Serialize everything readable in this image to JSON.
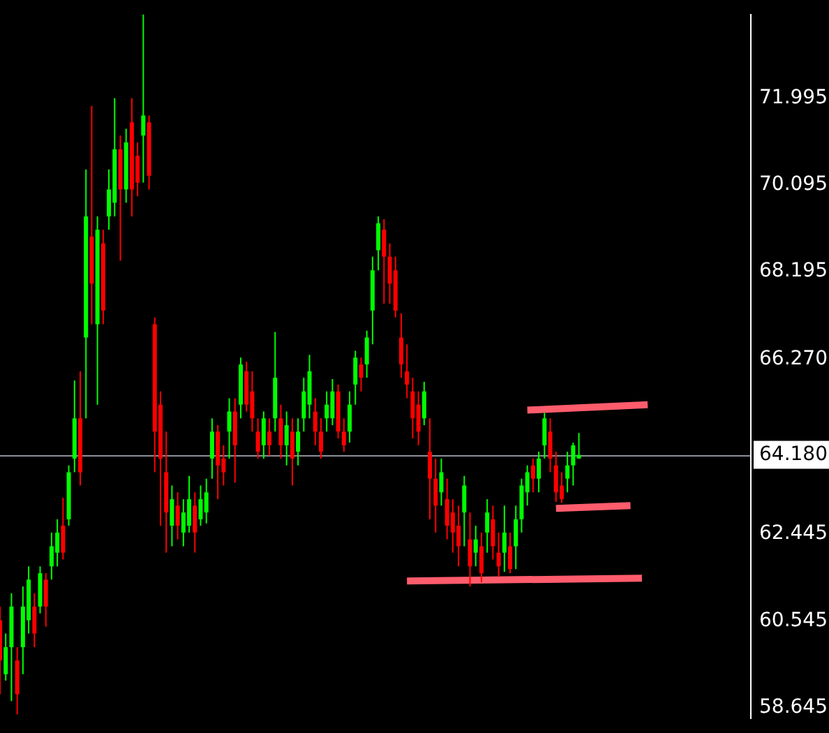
{
  "chart_data": {
    "type": "candlestick",
    "categories": [
      null,
      null,
      null,
      null,
      null,
      null,
      null,
      null,
      null,
      null,
      null,
      null,
      null,
      null,
      null,
      null,
      null,
      null,
      null,
      null,
      null,
      null,
      null,
      null,
      null,
      null,
      null,
      null,
      null,
      null,
      null,
      null,
      null,
      null,
      null,
      null,
      null,
      null,
      null,
      null,
      null,
      null,
      null,
      null,
      null,
      null,
      null,
      null,
      null,
      null,
      null,
      null,
      null,
      null,
      null,
      null,
      null,
      null,
      null,
      null,
      null,
      null,
      null,
      null,
      null,
      null,
      null,
      null,
      null,
      null,
      null,
      null,
      null,
      null,
      null,
      null,
      null,
      null,
      null,
      null,
      null,
      null,
      null,
      null,
      null,
      null,
      null,
      null,
      null,
      null,
      null,
      null,
      null,
      null,
      null,
      null,
      null,
      null,
      null,
      null,
      null,
      null,
      null,
      null,
      null,
      null,
      null,
      null,
      null,
      null,
      null,
      null,
      null,
      null,
      null,
      null,
      null,
      null,
      null,
      null,
      null,
      null,
      null,
      null,
      null,
      null,
      null,
      null,
      null,
      null,
      null,
      null
    ],
    "ohlc": [
      [
        60.56,
        60.86,
        58.94,
        59.68
      ],
      [
        59.38,
        60.27,
        59.24,
        59.97
      ],
      [
        59.97,
        61.15,
        58.79,
        60.86
      ],
      [
        59.68,
        59.97,
        58.5,
        58.94
      ],
      [
        59.97,
        61.3,
        59.38,
        60.86
      ],
      [
        60.56,
        61.74,
        60.27,
        61.45
      ],
      [
        60.86,
        61.15,
        59.97,
        60.27
      ],
      [
        60.86,
        61.74,
        60.71,
        61.59
      ],
      [
        61.45,
        61.59,
        60.42,
        60.86
      ],
      [
        61.74,
        62.48,
        61.45,
        62.18
      ],
      [
        62.04,
        62.77,
        61.74,
        62.48
      ],
      [
        62.63,
        63.24,
        61.89,
        62.04
      ],
      [
        62.77,
        63.95,
        62.63,
        63.8
      ],
      [
        64.1,
        65.81,
        63.8,
        64.98
      ],
      [
        64.98,
        66.01,
        63.51,
        63.8
      ],
      [
        66.75,
        70.43,
        64.98,
        69.4
      ],
      [
        68.96,
        71.82,
        67.04,
        67.93
      ],
      [
        67.04,
        69.4,
        65.28,
        69.11
      ],
      [
        68.81,
        69.11,
        67.04,
        67.34
      ],
      [
        69.4,
        70.43,
        69.11,
        69.99
      ],
      [
        69.7,
        71.99,
        69.4,
        70.87
      ],
      [
        70.87,
        71.17,
        68.43,
        69.99
      ],
      [
        69.99,
        71.32,
        69.7,
        71.02
      ],
      [
        71.46,
        71.99,
        69.4,
        69.99
      ],
      [
        70.73,
        71.02,
        69.84,
        70.14
      ],
      [
        71.17,
        73.82,
        70.14,
        71.61
      ],
      [
        71.46,
        71.61,
        69.99,
        70.29
      ],
      [
        67.04,
        67.19,
        63.8,
        64.69
      ],
      [
        65.28,
        65.57,
        62.63,
        64.1
      ],
      [
        63.8,
        64.69,
        62.04,
        62.92
      ],
      [
        62.63,
        63.51,
        62.18,
        63.21
      ],
      [
        63.07,
        63.36,
        62.33,
        62.63
      ],
      [
        62.48,
        63.21,
        62.18,
        62.92
      ],
      [
        62.63,
        63.72,
        62.48,
        63.21
      ],
      [
        63.07,
        63.36,
        62.04,
        62.48
      ],
      [
        62.77,
        63.51,
        62.63,
        63.21
      ],
      [
        62.92,
        63.66,
        62.68,
        63.36
      ],
      [
        64.1,
        64.98,
        63.66,
        64.69
      ],
      [
        64.69,
        64.83,
        63.21,
        63.95
      ],
      [
        64.1,
        64.39,
        63.51,
        63.8
      ],
      [
        64.69,
        65.42,
        64.1,
        65.13
      ],
      [
        65.13,
        65.42,
        63.57,
        64.39
      ],
      [
        65.28,
        66.31,
        64.98,
        66.16
      ],
      [
        66.01,
        66.22,
        65.13,
        65.28
      ],
      [
        65.57,
        66.01,
        64.69,
        64.98
      ],
      [
        64.69,
        64.98,
        64.1,
        64.25
      ],
      [
        64.39,
        65.13,
        64.1,
        64.98
      ],
      [
        64.69,
        64.98,
        64.16,
        64.39
      ],
      [
        64.98,
        66.87,
        64.69,
        65.87
      ],
      [
        64.98,
        65.28,
        64.1,
        64.39
      ],
      [
        64.39,
        65.13,
        63.95,
        64.83
      ],
      [
        64.69,
        64.98,
        63.51,
        64.1
      ],
      [
        64.25,
        64.98,
        63.95,
        64.69
      ],
      [
        64.98,
        65.87,
        64.69,
        65.57
      ],
      [
        65.28,
        66.37,
        64.98,
        66.01
      ],
      [
        65.13,
        65.42,
        64.39,
        64.69
      ],
      [
        64.69,
        64.98,
        64.1,
        64.25
      ],
      [
        64.98,
        65.57,
        64.69,
        65.28
      ],
      [
        64.98,
        65.84,
        64.83,
        65.57
      ],
      [
        65.57,
        65.72,
        64.54,
        64.69
      ],
      [
        64.69,
        64.98,
        64.25,
        64.39
      ],
      [
        64.69,
        65.57,
        64.45,
        65.28
      ],
      [
        65.72,
        66.46,
        65.28,
        66.31
      ],
      [
        66.16,
        66.31,
        65.57,
        65.87
      ],
      [
        66.16,
        66.9,
        65.87,
        66.75
      ],
      [
        67.34,
        68.52,
        66.6,
        68.22
      ],
      [
        68.66,
        69.4,
        68.22,
        69.25
      ],
      [
        69.11,
        69.34,
        67.49,
        68.52
      ],
      [
        68.52,
        68.81,
        67.49,
        67.93
      ],
      [
        68.22,
        68.52,
        67.19,
        67.34
      ],
      [
        66.75,
        67.28,
        65.87,
        66.16
      ],
      [
        66.01,
        66.6,
        65.42,
        65.72
      ],
      [
        65.57,
        65.87,
        64.54,
        64.98
      ],
      [
        65.28,
        65.57,
        64.39,
        64.69
      ],
      [
        64.98,
        65.78,
        64.83,
        65.57
      ],
      [
        64.25,
        64.98,
        62.77,
        63.66
      ],
      [
        63.66,
        64.1,
        62.48,
        63.07
      ],
      [
        63.36,
        64.1,
        63.07,
        63.8
      ],
      [
        63.21,
        63.66,
        62.33,
        62.63
      ],
      [
        62.92,
        63.21,
        62.04,
        62.48
      ],
      [
        62.63,
        63.07,
        61.74,
        62.18
      ],
      [
        62.92,
        63.72,
        62.18,
        63.51
      ],
      [
        62.33,
        62.92,
        61.3,
        61.74
      ],
      [
        62.04,
        62.63,
        61.74,
        62.33
      ],
      [
        62.18,
        62.48,
        61.39,
        61.59
      ],
      [
        62.48,
        63.21,
        62.04,
        62.92
      ],
      [
        62.77,
        63.07,
        61.89,
        62.18
      ],
      [
        62.04,
        62.48,
        61.51,
        61.74
      ],
      [
        62.04,
        63.07,
        61.62,
        62.48
      ],
      [
        62.18,
        62.48,
        61.59,
        61.68
      ],
      [
        62.18,
        63.07,
        61.68,
        62.77
      ],
      [
        62.77,
        63.66,
        62.48,
        63.51
      ],
      [
        63.36,
        63.95,
        63.07,
        63.8
      ],
      [
        63.95,
        64.1,
        63.36,
        63.66
      ],
      [
        63.66,
        64.25,
        63.36,
        64.1
      ],
      [
        64.39,
        65.1,
        64.1,
        64.98
      ],
      [
        64.69,
        64.98,
        63.8,
        64.1
      ],
      [
        63.95,
        64.25,
        63.15,
        63.36
      ],
      [
        63.51,
        63.8,
        63.13,
        63.21
      ],
      [
        63.66,
        64.25,
        63.36,
        63.95
      ],
      [
        63.95,
        64.45,
        63.51,
        64.39
      ],
      [
        64.1,
        64.66,
        64.1,
        64.18
      ],
      null,
      null,
      null,
      null,
      null,
      null,
      null,
      null,
      null,
      null,
      null,
      null,
      null,
      null,
      null,
      null,
      null,
      null,
      null,
      null,
      null,
      null,
      null,
      null,
      null,
      null,
      null,
      null,
      null,
      null
    ],
    "series": [
      {
        "type": "line",
        "color": "#ff5c6c",
        "values": [
          null,
          null,
          null,
          null,
          null,
          null,
          null,
          null,
          null,
          null,
          null,
          null,
          null,
          null,
          null,
          null,
          null,
          null,
          null,
          null,
          null,
          null,
          null,
          null,
          null,
          null,
          null,
          null,
          null,
          null,
          null,
          null,
          null,
          null,
          null,
          null,
          null,
          null,
          null,
          null,
          null,
          null,
          null,
          null,
          null,
          null,
          null,
          null,
          null,
          null,
          null,
          null,
          null,
          null,
          null,
          null,
          null,
          null,
          null,
          null,
          null,
          null,
          null,
          null,
          null,
          null,
          null,
          null,
          null,
          null,
          null,
          null,
          null,
          null,
          null,
          null,
          null,
          null,
          null,
          null,
          null,
          null,
          null,
          null,
          null,
          null,
          null,
          null,
          null,
          null,
          null,
          null,
          65.16,
          null,
          null,
          null,
          null,
          null,
          null,
          null,
          null,
          null,
          null,
          null,
          null,
          null,
          null,
          null,
          null,
          null,
          null,
          null,
          null,
          65.28,
          null,
          null,
          null,
          null,
          null,
          null,
          null,
          null,
          null,
          null,
          null,
          null,
          null,
          null,
          null,
          null,
          null,
          null
        ]
      },
      {
        "type": "line",
        "color": "#ff5c6c",
        "values": [
          null,
          null,
          null,
          null,
          null,
          null,
          null,
          null,
          null,
          null,
          null,
          null,
          null,
          null,
          null,
          null,
          null,
          null,
          null,
          null,
          null,
          null,
          null,
          null,
          null,
          null,
          null,
          null,
          null,
          null,
          null,
          null,
          null,
          null,
          null,
          null,
          null,
          null,
          null,
          null,
          null,
          null,
          null,
          null,
          null,
          null,
          null,
          null,
          null,
          null,
          null,
          null,
          null,
          null,
          null,
          null,
          null,
          null,
          null,
          null,
          null,
          null,
          null,
          null,
          null,
          null,
          null,
          null,
          null,
          null,
          null,
          null,
          null,
          null,
          null,
          null,
          null,
          null,
          null,
          null,
          null,
          null,
          null,
          null,
          null,
          null,
          null,
          null,
          null,
          null,
          null,
          null,
          null,
          null,
          null,
          null,
          null,
          63.01,
          null,
          null,
          null,
          null,
          null,
          null,
          null,
          null,
          null,
          null,
          null,
          null,
          63.07,
          null,
          null,
          null,
          null,
          null,
          null,
          null,
          null,
          null,
          null,
          null,
          null,
          null,
          null,
          null,
          null,
          null,
          null,
          null,
          null,
          null
        ]
      },
      {
        "type": "line",
        "color": "#ff5c6c",
        "values": [
          null,
          null,
          null,
          null,
          null,
          null,
          null,
          null,
          null,
          null,
          null,
          null,
          null,
          null,
          null,
          null,
          null,
          null,
          null,
          null,
          null,
          null,
          null,
          null,
          null,
          null,
          null,
          null,
          null,
          null,
          null,
          null,
          null,
          null,
          null,
          null,
          null,
          null,
          null,
          null,
          null,
          null,
          null,
          null,
          null,
          null,
          null,
          null,
          null,
          null,
          null,
          null,
          null,
          null,
          null,
          null,
          null,
          null,
          null,
          null,
          null,
          null,
          null,
          null,
          null,
          null,
          null,
          null,
          null,
          null,
          null,
          61.42,
          null,
          null,
          null,
          null,
          null,
          null,
          null,
          null,
          null,
          null,
          null,
          null,
          null,
          null,
          null,
          null,
          null,
          null,
          null,
          null,
          null,
          null,
          null,
          null,
          null,
          null,
          null,
          null,
          null,
          null,
          null,
          null,
          null,
          null,
          null,
          null,
          null,
          null,
          null,
          null,
          61.48,
          null,
          null,
          null,
          null,
          null,
          null,
          null,
          null,
          null,
          null,
          null,
          null,
          null,
          null,
          null,
          null,
          null,
          null,
          null
        ]
      }
    ],
    "ylim": [
      58.41,
      73.82
    ],
    "yticks": [
      58.645,
      60.545,
      62.445,
      {
        "value": 66.27,
        "label": "66.270"
      },
      68.195,
      70.095,
      71.995
    ],
    "ref_lines": [
      {
        "axis": "y",
        "value": 64.18,
        "label": "64.180",
        "color": "#8a9099"
      }
    ],
    "tick_labels": "y",
    "grid": false,
    "legend": false
  }
}
